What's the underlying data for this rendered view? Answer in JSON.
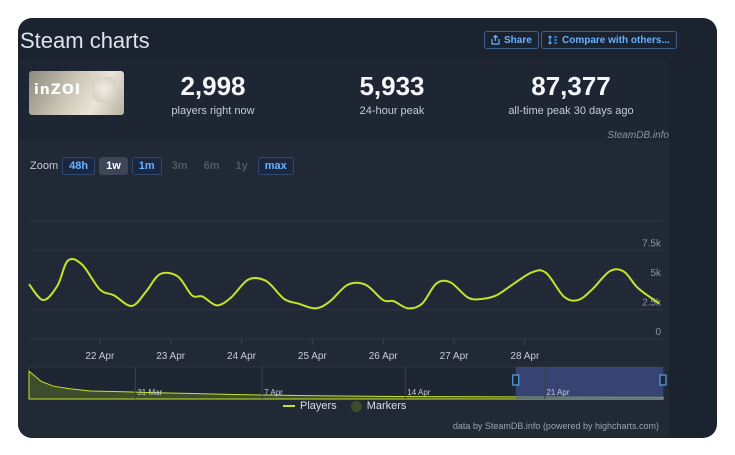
{
  "header": {
    "title": "Steam charts",
    "share_label": "Share",
    "compare_label": "Compare with others..."
  },
  "game": {
    "logo_text": "inZOI"
  },
  "stats": [
    {
      "value": "2,998",
      "label": "players right now"
    },
    {
      "value": "5,933",
      "label": "24-hour peak"
    },
    {
      "value": "87,377",
      "label": "all-time peak 30 days ago"
    }
  ],
  "source_credit": "SteamDB.info",
  "zoom": {
    "label": "Zoom",
    "options": [
      {
        "label": "48h",
        "state": "enabled"
      },
      {
        "label": "1w",
        "state": "selected"
      },
      {
        "label": "1m",
        "state": "enabled"
      },
      {
        "label": "3m",
        "state": "disabled"
      },
      {
        "label": "6m",
        "state": "disabled"
      },
      {
        "label": "1y",
        "state": "disabled"
      },
      {
        "label": "max",
        "state": "enabled"
      }
    ]
  },
  "chart_data": {
    "type": "line",
    "series": [
      {
        "name": "Players",
        "color": "#c6e32a",
        "points": [
          [
            21.0,
            4650
          ],
          [
            21.2,
            3300
          ],
          [
            21.4,
            4500
          ],
          [
            21.55,
            6650
          ],
          [
            21.75,
            6300
          ],
          [
            22.0,
            4200
          ],
          [
            22.2,
            3700
          ],
          [
            22.45,
            2800
          ],
          [
            22.65,
            4000
          ],
          [
            22.85,
            5500
          ],
          [
            23.1,
            5300
          ],
          [
            23.3,
            3700
          ],
          [
            23.45,
            3600
          ],
          [
            23.65,
            2850
          ],
          [
            23.85,
            3500
          ],
          [
            24.1,
            5050
          ],
          [
            24.35,
            4900
          ],
          [
            24.6,
            3400
          ],
          [
            24.8,
            3000
          ],
          [
            25.05,
            2600
          ],
          [
            25.25,
            3200
          ],
          [
            25.5,
            4600
          ],
          [
            25.75,
            4600
          ],
          [
            26.0,
            3300
          ],
          [
            26.15,
            3200
          ],
          [
            26.35,
            2600
          ],
          [
            26.55,
            3000
          ],
          [
            26.75,
            4700
          ],
          [
            26.95,
            4800
          ],
          [
            27.2,
            3500
          ],
          [
            27.4,
            3400
          ],
          [
            27.6,
            3700
          ],
          [
            27.8,
            4500
          ],
          [
            28.1,
            5650
          ],
          [
            28.3,
            5600
          ],
          [
            28.55,
            3600
          ],
          [
            28.75,
            3300
          ],
          [
            28.95,
            4200
          ],
          [
            29.2,
            5750
          ],
          [
            29.4,
            5700
          ],
          [
            29.6,
            4300
          ],
          [
            29.9,
            3000
          ]
        ]
      }
    ],
    "x_ticks": [
      "22 Apr",
      "23 Apr",
      "24 Apr",
      "25 Apr",
      "26 Apr",
      "27 Apr",
      "28 Apr"
    ],
    "y_ticks": [
      "0",
      "2.5k",
      "5k",
      "7.5k"
    ],
    "y_tick_values": [
      0,
      2500,
      5000,
      7500
    ],
    "ylim": [
      0,
      10000
    ],
    "xlim": [
      21.0,
      29.95
    ],
    "navigator": {
      "labels": [
        "31 Mar",
        "7 Apr",
        "14 Apr",
        "21 Apr"
      ],
      "points": [
        [
          0,
          87000
        ],
        [
          6,
          55000
        ],
        [
          12,
          40000
        ],
        [
          20,
          32000
        ],
        [
          30,
          25000
        ],
        [
          44,
          23000
        ],
        [
          60,
          20000
        ],
        [
          80,
          17000
        ],
        [
          100,
          14000
        ],
        [
          120,
          12000
        ],
        [
          140,
          10000
        ],
        [
          160,
          9000
        ],
        [
          180,
          8000
        ],
        [
          200,
          7500
        ],
        [
          220,
          7000
        ],
        [
          240,
          6500
        ],
        [
          265,
          6000
        ],
        [
          290,
          5500
        ],
        [
          310,
          5400
        ]
      ],
      "ylim": [
        0,
        100000
      ],
      "xlim": [
        0,
        310
      ],
      "selected_range": [
        238,
        310
      ]
    },
    "legend": [
      "Players",
      "Markers"
    ],
    "grid": true
  },
  "legend": {
    "players": "Players",
    "markers": "Markers"
  },
  "footer_credit": "data by SteamDB.info (powered by highcharts.com)"
}
